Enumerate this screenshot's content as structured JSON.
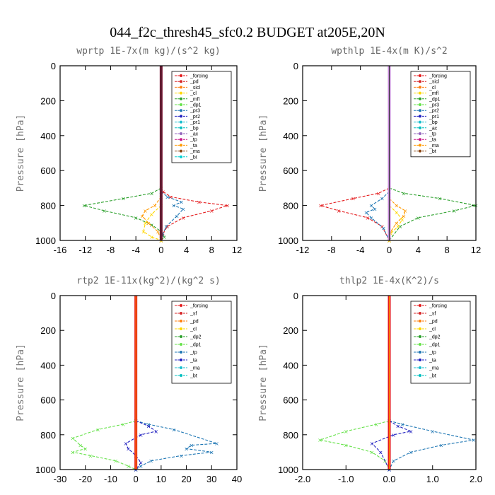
{
  "figure_title": "044_f2c_thresh45_sfc0.2  BUDGET at205E,20N",
  "chart_data": [
    {
      "type": "line",
      "title": "wprtp  1E-7x(m kg)/(s^2 kg)",
      "ylabel": "Pressure [hPa]",
      "xlim": [
        -16,
        12
      ],
      "ylim": [
        1000,
        0
      ],
      "xticks": [
        "-16",
        "-12",
        "-8",
        "-4",
        "0",
        "4",
        "8",
        "12"
      ],
      "yticks": [
        "0",
        "200",
        "400",
        "600",
        "800",
        "1000"
      ],
      "legend_position": "top-right",
      "legend": [
        "_forcing",
        "_pd",
        "_sicl",
        "_cl",
        "_mfl",
        "_dp1",
        "_pr3",
        "_pr2",
        "_pr1",
        "_bp",
        "_ac",
        "_tp",
        "_ta",
        "_ma",
        "_bt"
      ],
      "grid": false,
      "series": [
        {
          "name": "_dp1",
          "color": "#e41a1c",
          "x": [
            0,
            0.3,
            1.5,
            6.0,
            10.5,
            8.0,
            3.5,
            1.0,
            0.3,
            0
          ],
          "y": [
            700,
            720,
            750,
            780,
            800,
            830,
            870,
            920,
            960,
            1000
          ]
        },
        {
          "name": "_bp",
          "color": "#2ca02c",
          "x": [
            0,
            -1.5,
            -6.0,
            -12.2,
            -9.0,
            -4.0,
            -1.5,
            0,
            0.5,
            0
          ],
          "y": [
            700,
            730,
            760,
            800,
            830,
            870,
            910,
            950,
            980,
            1000
          ]
        },
        {
          "name": "_tp",
          "color": "#1f77b4",
          "x": [
            0,
            1.0,
            3.2,
            2.0,
            3.5,
            2.5,
            0.8,
            0.2,
            0
          ],
          "y": [
            720,
            750,
            780,
            800,
            820,
            860,
            920,
            970,
            1000
          ]
        },
        {
          "name": "_pr1",
          "color": "#ff9900",
          "x": [
            0,
            -1.0,
            -2.5,
            -3.0,
            -2.0,
            -0.5,
            0
          ],
          "y": [
            750,
            800,
            830,
            860,
            900,
            950,
            1000
          ]
        },
        {
          "name": "_ac",
          "color": "#ffd700",
          "x": [
            0,
            -1.5,
            -2.5,
            -2.8,
            -1.5,
            0
          ],
          "y": [
            800,
            850,
            900,
            950,
            980,
            1000
          ]
        }
      ]
    },
    {
      "type": "line",
      "title": "wpthlp  1E-4x(m K)/s^2",
      "ylabel": "Pressure [hPa]",
      "xlim": [
        -12,
        12
      ],
      "ylim": [
        1000,
        0
      ],
      "xticks": [
        "-12",
        "-8",
        "-4",
        "0",
        "4",
        "8",
        "12"
      ],
      "yticks": [
        "0",
        "200",
        "400",
        "600",
        "800",
        "1000"
      ],
      "legend_position": "top-right",
      "legend": [
        "_forcing",
        "_sicl",
        "_cl",
        "_mfl",
        "_dp1",
        "_pr3",
        "_pr2",
        "_pr1",
        "_bp",
        "_ac",
        "_tp",
        "_ta",
        "_ma",
        "_bt"
      ],
      "grid": false,
      "series": [
        {
          "name": "_bp",
          "color": "#2ca02c",
          "x": [
            0,
            2.0,
            7.0,
            12.0,
            9.0,
            4.0,
            1.5,
            0
          ],
          "y": [
            700,
            730,
            760,
            800,
            830,
            870,
            920,
            1000
          ]
        },
        {
          "name": "_dp1",
          "color": "#e41a1c",
          "x": [
            0,
            -1.5,
            -5.0,
            -9.5,
            -7.0,
            -3.0,
            -1.0,
            0
          ],
          "y": [
            700,
            730,
            760,
            800,
            830,
            870,
            920,
            1000
          ]
        },
        {
          "name": "_tp",
          "color": "#1f77b4",
          "x": [
            0,
            -1.0,
            -2.5,
            -2.0,
            -3.2,
            -2.5,
            -0.8,
            0
          ],
          "y": [
            720,
            760,
            800,
            820,
            840,
            870,
            930,
            1000
          ]
        },
        {
          "name": "_pr1",
          "color": "#ff9900",
          "x": [
            0,
            1.0,
            2.2,
            2.0,
            1.0,
            0.2,
            0
          ],
          "y": [
            760,
            800,
            830,
            860,
            900,
            950,
            1000
          ]
        },
        {
          "name": "_ac",
          "color": "#ffd700",
          "x": [
            0,
            1.0,
            1.8,
            1.2,
            0.2,
            0
          ],
          "y": [
            800,
            840,
            880,
            920,
            960,
            1000
          ]
        }
      ]
    },
    {
      "type": "line",
      "title": "rtp2  1E-11x(kg^2)/(kg^2 s)",
      "ylabel": "Pressure [hPa]",
      "xlim": [
        -30,
        40
      ],
      "ylim": [
        1000,
        0
      ],
      "xticks": [
        "-30",
        "-20",
        "-10",
        "0",
        "10",
        "20",
        "30",
        "40"
      ],
      "yticks": [
        "0",
        "200",
        "400",
        "600",
        "800",
        "1000"
      ],
      "legend_position": "top-right",
      "legend": [
        "_forcing",
        "_sf",
        "_pd",
        "_cl",
        "_dp2",
        "_dp1",
        "_tp",
        "_ta",
        "_ma",
        "_bt"
      ],
      "grid": false,
      "series": [
        {
          "name": "_dp1",
          "color": "#66e24a",
          "x": [
            0,
            -5.0,
            -15.0,
            -25.0,
            -22.0,
            -20.0,
            -25.0,
            -18.0,
            -8.0,
            -3.0,
            0
          ],
          "y": [
            720,
            740,
            770,
            820,
            860,
            880,
            900,
            920,
            950,
            980,
            1000
          ]
        },
        {
          "name": "_tp",
          "color": "#1f77b4",
          "x": [
            0,
            5.0,
            15.0,
            32.0,
            22.0,
            20.0,
            30.0,
            18.0,
            6.0,
            2.0,
            0
          ],
          "y": [
            720,
            740,
            770,
            850,
            860,
            880,
            900,
            920,
            950,
            980,
            1000
          ]
        },
        {
          "name": "_ta",
          "color": "#2020c0",
          "x": [
            0,
            5.0,
            8.0,
            2.0,
            -4.0,
            -3.0,
            0,
            2.0,
            0
          ],
          "y": [
            720,
            750,
            780,
            800,
            850,
            880,
            920,
            960,
            1000
          ]
        }
      ]
    },
    {
      "type": "line",
      "title": "thlp2  1E-4x(K^2)/s",
      "ylabel": "Pressure [hPa]",
      "xlim": [
        -2.0,
        2.0
      ],
      "ylim": [
        1000,
        0
      ],
      "xticks": [
        "-2.0",
        "-1.0",
        "0.0",
        "1.0",
        "2.0"
      ],
      "yticks": [
        "0",
        "200",
        "400",
        "600",
        "800",
        "1000"
      ],
      "legend_position": "top-right",
      "legend": [
        "_forcing",
        "_sf",
        "_pd",
        "_cl",
        "_dp2",
        "_dp1",
        "_tp",
        "_ta",
        "_ma",
        "_bt"
      ],
      "grid": false,
      "series": [
        {
          "name": "_dp1",
          "color": "#66e24a",
          "x": [
            0,
            -0.3,
            -1.0,
            -1.6,
            -1.0,
            -0.4,
            -0.1,
            0
          ],
          "y": [
            720,
            740,
            780,
            830,
            860,
            900,
            950,
            1000
          ]
        },
        {
          "name": "_tp",
          "color": "#1f77b4",
          "x": [
            0,
            0.3,
            1.0,
            1.95,
            1.2,
            0.5,
            0.1,
            0
          ],
          "y": [
            720,
            740,
            780,
            830,
            860,
            900,
            950,
            1000
          ]
        },
        {
          "name": "_ta",
          "color": "#2020c0",
          "x": [
            0,
            0.2,
            0.5,
            0.1,
            -0.4,
            -0.2,
            0
          ],
          "y": [
            720,
            750,
            780,
            800,
            850,
            900,
            1000
          ]
        }
      ]
    }
  ]
}
